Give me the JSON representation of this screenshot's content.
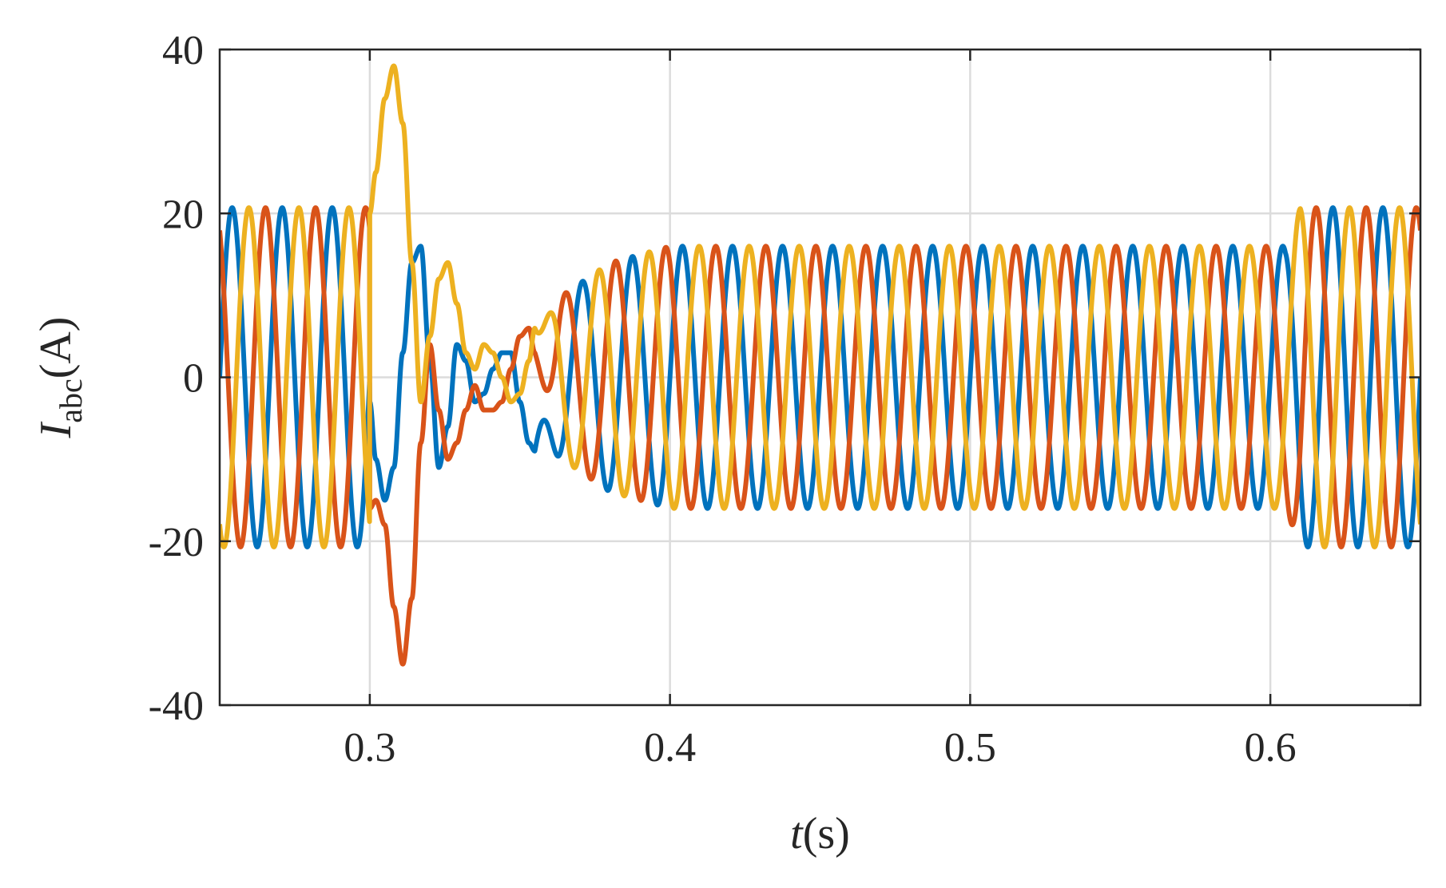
{
  "chart_data": {
    "type": "line",
    "title": "",
    "xlabel": {
      "var": "t",
      "unit": "(s)"
    },
    "ylabel": {
      "var": "I",
      "sub": "abc",
      "unit": "(A)"
    },
    "xlim": [
      0.25,
      0.65
    ],
    "ylim": [
      -40,
      40
    ],
    "xticks": [
      0.3,
      0.4,
      0.5,
      0.6
    ],
    "xtick_labels": [
      "0.3",
      "0.4",
      "0.5",
      "0.6"
    ],
    "yticks": [
      -40,
      -20,
      0,
      20,
      40
    ],
    "ytick_labels": [
      "-40",
      "-20",
      "0",
      "20",
      "40"
    ],
    "grid": true,
    "legend": "none",
    "series": [
      {
        "color": "#0072BD",
        "waveform": {
          "frequency_hz": 60,
          "phase_deg": 0,
          "t_start": 0.25,
          "t_end": 0.65,
          "amplitude_profile": [
            [
              0.25,
              20.7
            ],
            [
              0.3,
              20.7
            ],
            [
              0.34,
              4
            ],
            [
              0.36,
              9
            ],
            [
              0.38,
              14
            ],
            [
              0.4,
              16
            ],
            [
              0.605,
              16
            ],
            [
              0.61,
              20.7
            ],
            [
              0.65,
              20.7
            ]
          ]
        }
      },
      {
        "color": "#D95319",
        "waveform": {
          "frequency_hz": 60,
          "phase_deg": 120,
          "t_start": 0.25,
          "t_end": 0.65,
          "amplitude_profile": [
            [
              0.25,
              20.7
            ],
            [
              0.3,
              20.7
            ],
            [
              0.34,
              4
            ],
            [
              0.36,
              9
            ],
            [
              0.38,
              14
            ],
            [
              0.4,
              16
            ],
            [
              0.605,
              16
            ],
            [
              0.61,
              20.7
            ],
            [
              0.65,
              20.7
            ]
          ]
        }
      },
      {
        "color": "#EDB120",
        "waveform": {
          "frequency_hz": 60,
          "phase_deg": -120,
          "t_start": 0.25,
          "t_end": 0.65,
          "amplitude_profile": [
            [
              0.25,
              20.7
            ],
            [
              0.3,
              20.7
            ],
            [
              0.34,
              4
            ],
            [
              0.36,
              9
            ],
            [
              0.38,
              14
            ],
            [
              0.4,
              16
            ],
            [
              0.605,
              16
            ],
            [
              0.61,
              20.7
            ],
            [
              0.65,
              20.7
            ]
          ]
        }
      }
    ],
    "transient": {
      "t_start": 0.3,
      "t_end": 0.355,
      "points": [
        {
          "series": 0,
          "x": [
            0.3,
            0.302,
            0.305,
            0.308,
            0.311,
            0.314,
            0.317,
            0.32,
            0.323,
            0.326,
            0.329,
            0.332,
            0.335,
            0.338,
            0.341,
            0.344,
            0.347,
            0.35,
            0.353,
            0.355
          ],
          "y": [
            -3,
            -10,
            -15,
            -11,
            3,
            14,
            16,
            2,
            -11,
            -6,
            4,
            2,
            -3,
            -2,
            1,
            3,
            3,
            -3,
            -8,
            -9
          ]
        },
        {
          "series": 1,
          "x": [
            0.3,
            0.302,
            0.305,
            0.308,
            0.311,
            0.314,
            0.317,
            0.32,
            0.323,
            0.326,
            0.329,
            0.332,
            0.335,
            0.338,
            0.341,
            0.344,
            0.347,
            0.35,
            0.353,
            0.355
          ],
          "y": [
            -16,
            -15,
            -18,
            -28,
            -35,
            -27,
            -8,
            4,
            -4,
            -10,
            -8,
            -4,
            -1,
            -4,
            -4,
            -3,
            1,
            5,
            6,
            3
          ]
        },
        {
          "series": 2,
          "x": [
            0.3,
            0.302,
            0.305,
            0.308,
            0.311,
            0.314,
            0.317,
            0.32,
            0.323,
            0.326,
            0.329,
            0.332,
            0.335,
            0.338,
            0.341,
            0.344,
            0.347,
            0.35,
            0.353,
            0.355
          ],
          "y": [
            20,
            25,
            34,
            38,
            31,
            14,
            -3,
            5,
            12,
            14,
            9,
            3,
            1,
            4,
            3,
            0,
            -3,
            -2,
            2,
            6
          ]
        }
      ]
    }
  }
}
